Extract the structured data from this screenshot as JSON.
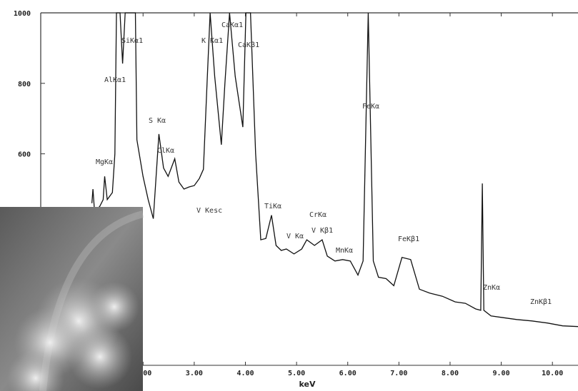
{
  "chart_data": {
    "type": "line",
    "x_label": "keV",
    "xlim": [
      0,
      10.5
    ],
    "ylim": [
      0,
      1000
    ],
    "xticks": [
      {
        "value": 2,
        "label": "2.00"
      },
      {
        "value": 3,
        "label": "3.00"
      },
      {
        "value": 4,
        "label": "4.00"
      },
      {
        "value": 5,
        "label": "5.00"
      },
      {
        "value": 6,
        "label": "6.00"
      },
      {
        "value": 7,
        "label": "7.00"
      },
      {
        "value": 8,
        "label": "8.00"
      },
      {
        "value": 9,
        "label": "9.00"
      },
      {
        "value": 10,
        "label": "10.00"
      }
    ],
    "yticks": [
      600,
      800,
      1000
    ],
    "series": [
      {
        "color": "#111111",
        "x": [
          1.0,
          1.02,
          1.05,
          1.15,
          1.22,
          1.25,
          1.3,
          1.4,
          1.45,
          1.48,
          1.55,
          1.6,
          1.65,
          1.74,
          1.85,
          1.88,
          2.0,
          2.1,
          2.2,
          2.31,
          2.4,
          2.49,
          2.62,
          2.7,
          2.8,
          2.9,
          3.0,
          3.1,
          3.18,
          3.25,
          3.31,
          3.4,
          3.53,
          3.6,
          3.69,
          3.8,
          3.95,
          4.01,
          4.1,
          4.2,
          4.3,
          4.4,
          4.51,
          4.6,
          4.7,
          4.8,
          4.95,
          5.1,
          5.2,
          5.35,
          5.5,
          5.6,
          5.75,
          5.9,
          6.05,
          6.2,
          6.3,
          6.4,
          6.5,
          6.6,
          6.75,
          6.9,
          7.06,
          7.23,
          7.4,
          7.6,
          7.85,
          8.1,
          8.3,
          8.5,
          8.6,
          8.63,
          8.66,
          8.8,
          9.0,
          9.3,
          9.6,
          9.9,
          10.2,
          10.5
        ],
        "values": [
          460,
          500,
          440,
          450,
          470,
          536,
          470,
          490,
          600,
          1000,
          1000,
          856,
          1000,
          1000,
          1000,
          640,
          536,
          470,
          416,
          656,
          560,
          536,
          586,
          520,
          500,
          506,
          510,
          530,
          556,
          800,
          1000,
          820,
          626,
          800,
          1000,
          820,
          676,
          1000,
          1000,
          600,
          356,
          360,
          426,
          340,
          326,
          330,
          316,
          330,
          356,
          340,
          356,
          310,
          296,
          300,
          296,
          256,
          296,
          1000,
          296,
          250,
          246,
          226,
          306,
          300,
          216,
          205,
          196,
          180,
          176,
          160,
          156,
          516,
          156,
          140,
          136,
          130,
          126,
          120,
          112,
          110
        ]
      }
    ],
    "annotations": [
      "MgKα",
      "AlKα1",
      "SiKα1",
      "S Kα",
      "ClKα",
      "K Kα1",
      "CaKα1",
      "CaKβ1",
      "V Kesc",
      "TiKα",
      "V Kα",
      "CrKα",
      "V Kβ1",
      "MnKα",
      "FeKα",
      "FeKβ1",
      "ZnKα",
      "ZnKβ1"
    ]
  }
}
